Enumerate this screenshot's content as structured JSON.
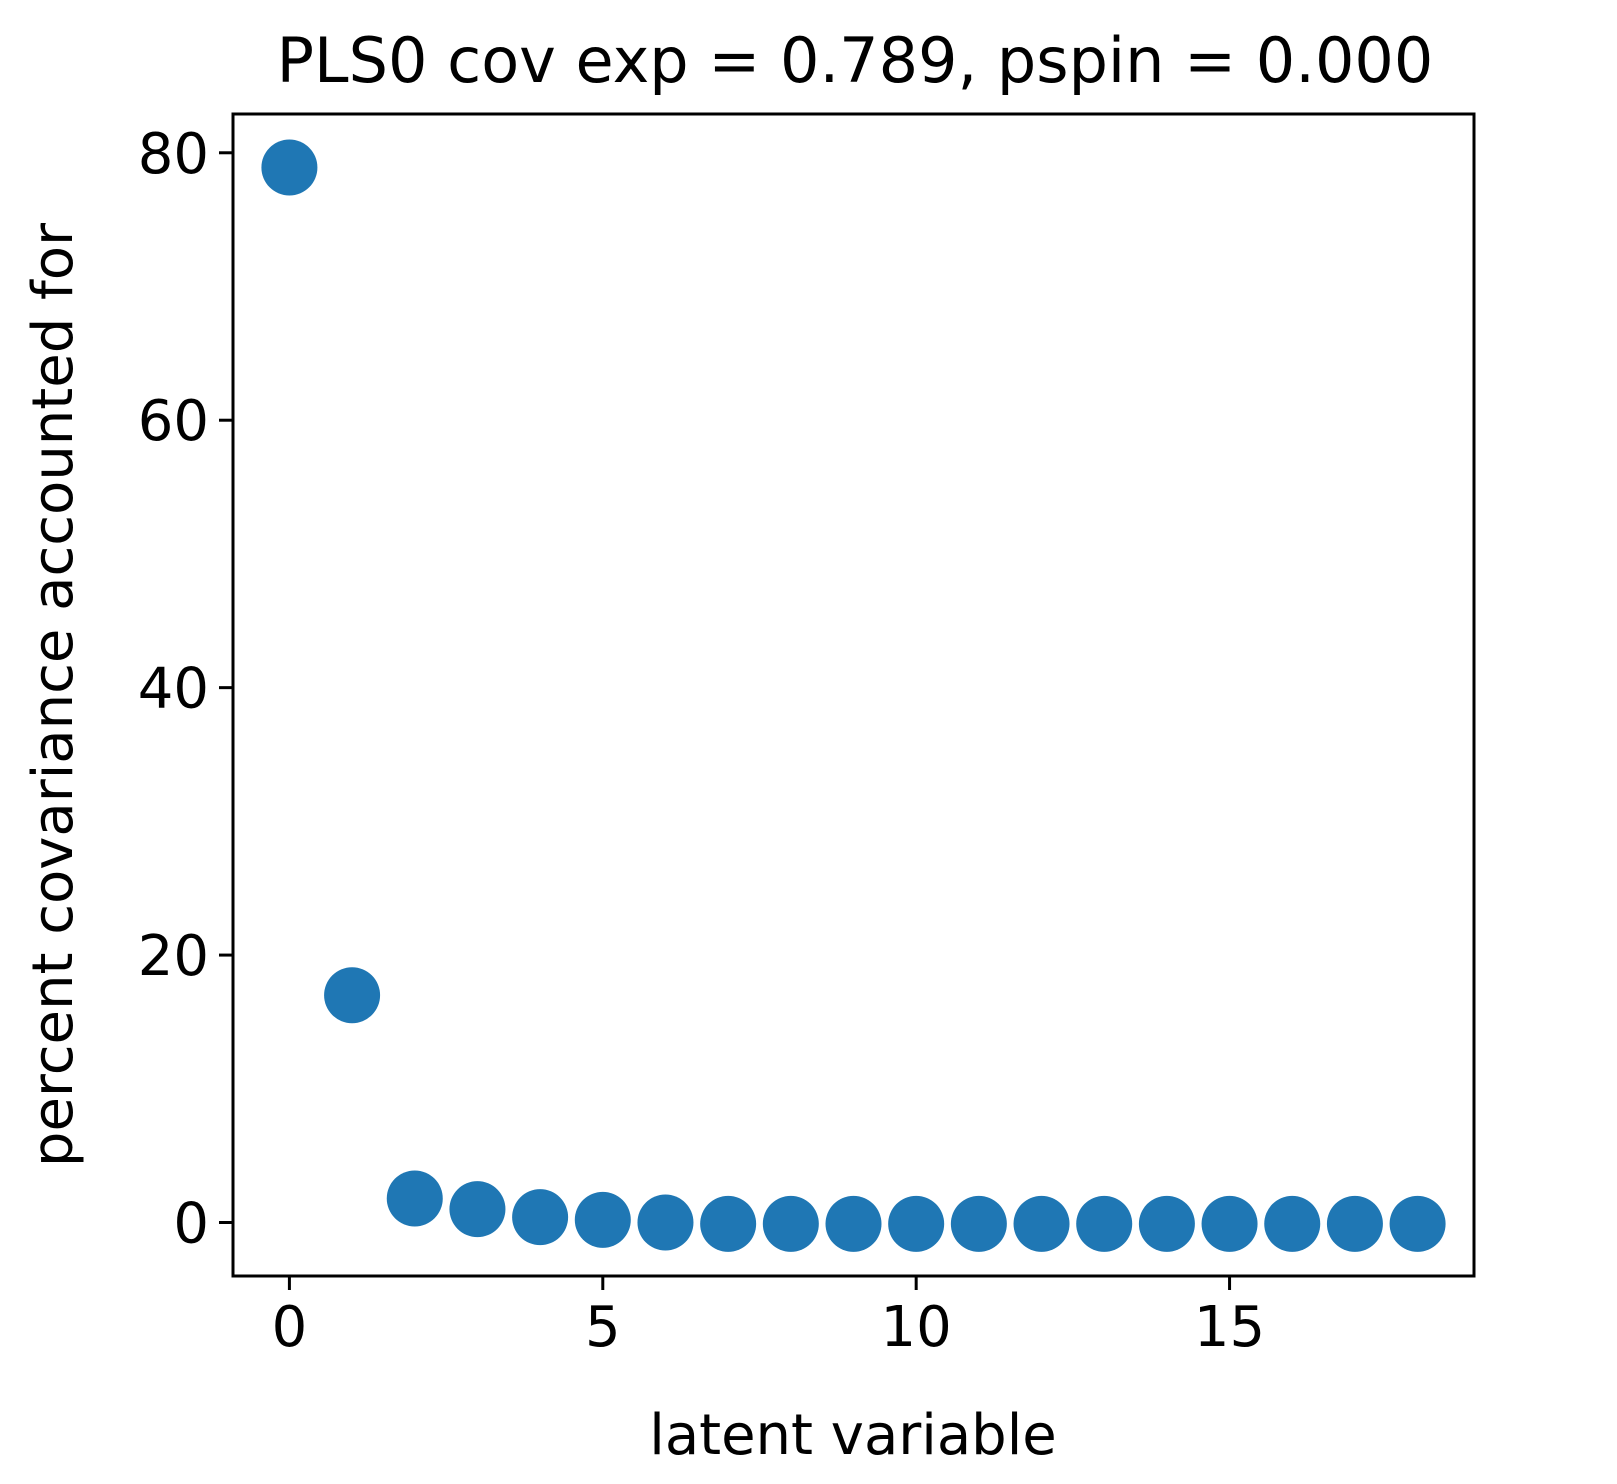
{
  "chart_data": {
    "type": "scatter",
    "title": "PLS0 cov exp = 0.789, pspin = 0.000",
    "xlabel": "latent variable",
    "ylabel": "percent covariance accounted for",
    "x": [
      0,
      1,
      2,
      3,
      4,
      5,
      6,
      7,
      8,
      9,
      10,
      11,
      12,
      13,
      14,
      15,
      16,
      17,
      18
    ],
    "y": [
      78.9,
      17.0,
      1.8,
      1.0,
      0.4,
      0.2,
      0.0,
      -0.1,
      -0.1,
      -0.1,
      -0.1,
      -0.1,
      -0.1,
      -0.1,
      -0.1,
      -0.1,
      -0.1,
      -0.1,
      -0.1
    ],
    "xlim": [
      -0.9,
      18.9
    ],
    "ylim": [
      -4.0,
      82.9
    ],
    "xticks": [
      0,
      5,
      10,
      15
    ],
    "xtick_labels": [
      "0",
      "5",
      "10",
      "15"
    ],
    "yticks": [
      0,
      20,
      40,
      60,
      80
    ],
    "ytick_labels": [
      "0",
      "20",
      "40",
      "60",
      "80"
    ],
    "marker_color": "#1f77b4",
    "grid": false,
    "legend": "none"
  }
}
